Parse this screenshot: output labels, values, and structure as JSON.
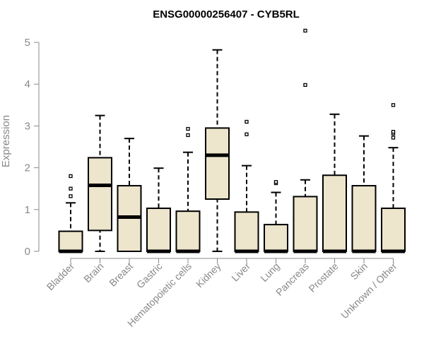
{
  "chart_data": {
    "type": "boxplot",
    "title": "ENSG00000256407 - CYB5RL",
    "xlabel": "",
    "ylabel": "Expression",
    "ylim": [
      0,
      5.25
    ],
    "yticks": [
      0,
      1,
      2,
      3,
      4,
      5
    ],
    "grid": false,
    "legend": "none",
    "colors": {
      "box_fill": "#ede5cc",
      "stroke": "#000000",
      "axis": "#888888"
    },
    "categories": [
      "Bladder",
      "Brain",
      "Breast",
      "Gastric",
      "Hematopoietic cells",
      "Kidney",
      "Liver",
      "Lung",
      "Pancreas",
      "Prostate",
      "Skin",
      "Unknown / Other"
    ],
    "boxes": [
      {
        "category": "Bladder",
        "whisker_low": 0,
        "q1": 0,
        "median": 0,
        "q3": 0.48,
        "whisker_high": 1.16,
        "outliers": [
          1.32,
          1.5,
          1.8
        ]
      },
      {
        "category": "Brain",
        "whisker_low": 0,
        "q1": 0.5,
        "median": 1.58,
        "q3": 2.24,
        "whisker_high": 3.25,
        "outliers": []
      },
      {
        "category": "Breast",
        "whisker_low": 0,
        "q1": 0,
        "median": 0.82,
        "q3": 1.57,
        "whisker_high": 2.7,
        "outliers": []
      },
      {
        "category": "Gastric",
        "whisker_low": 0,
        "q1": 0,
        "median": 0,
        "q3": 1.03,
        "whisker_high": 1.99,
        "outliers": []
      },
      {
        "category": "Hematopoietic cells",
        "whisker_low": 0,
        "q1": 0,
        "median": 0,
        "q3": 0.96,
        "whisker_high": 2.37,
        "outliers": [
          2.78,
          2.93
        ]
      },
      {
        "category": "Kidney",
        "whisker_low": 0,
        "q1": 1.25,
        "median": 2.3,
        "q3": 2.95,
        "whisker_high": 4.82,
        "outliers": []
      },
      {
        "category": "Liver",
        "whisker_low": 0,
        "q1": 0,
        "median": 0,
        "q3": 0.94,
        "whisker_high": 2.05,
        "outliers": [
          2.8,
          3.1
        ]
      },
      {
        "category": "Lung",
        "whisker_low": 0,
        "q1": 0,
        "median": 0,
        "q3": 0.64,
        "whisker_high": 1.41,
        "outliers": [
          1.63,
          1.66
        ]
      },
      {
        "category": "Pancreas",
        "whisker_low": 0,
        "q1": 0,
        "median": 0,
        "q3": 1.31,
        "whisker_high": 1.71,
        "outliers": [
          3.98,
          5.28
        ]
      },
      {
        "category": "Prostate",
        "whisker_low": 0,
        "q1": 0,
        "median": 0,
        "q3": 1.82,
        "whisker_high": 3.28,
        "outliers": []
      },
      {
        "category": "Skin",
        "whisker_low": 0,
        "q1": 0,
        "median": 0,
        "q3": 1.57,
        "whisker_high": 2.76,
        "outliers": []
      },
      {
        "category": "Unknown / Other",
        "whisker_low": 0,
        "q1": 0,
        "median": 0,
        "q3": 1.03,
        "whisker_high": 2.48,
        "outliers": [
          2.72,
          2.82,
          2.86,
          3.5
        ]
      }
    ]
  }
}
